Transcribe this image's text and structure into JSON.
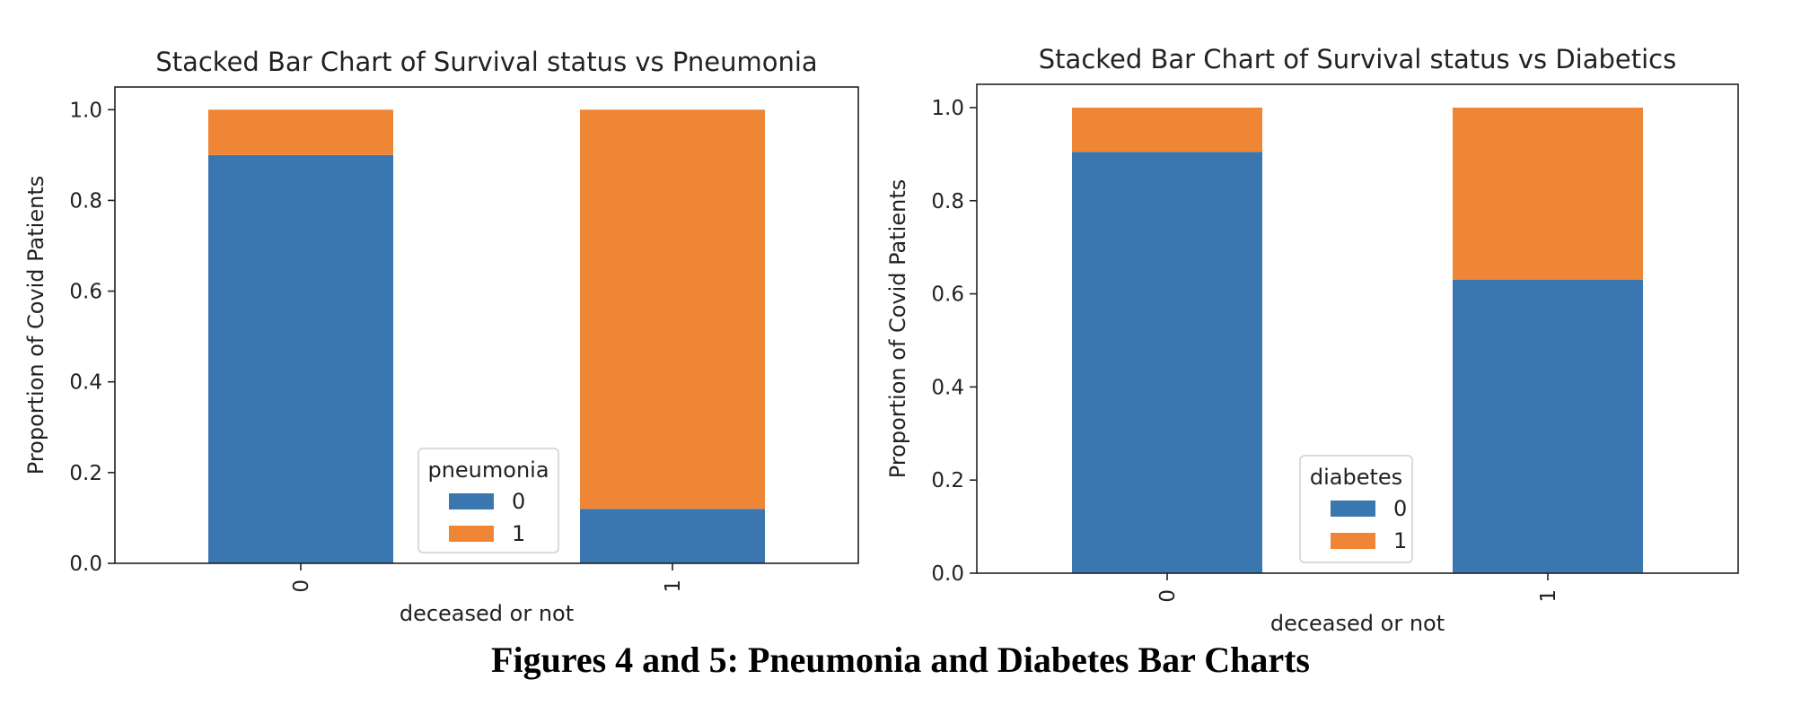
{
  "caption": "Figures 4 and 5: Pneumonia and Diabetes Bar Charts",
  "colors": {
    "series_0": "#3a76b0",
    "series_1": "#ef8636"
  },
  "chart_data": [
    {
      "type": "bar",
      "stacked": true,
      "title": "Stacked Bar Chart of Survival status vs Pneumonia",
      "xlabel": "deceased or not",
      "ylabel": "Proportion of Covid Patients",
      "categories": [
        "0",
        "1"
      ],
      "ylim": [
        0,
        1.05
      ],
      "yticks": [
        "0.0",
        "0.2",
        "0.4",
        "0.6",
        "0.8",
        "1.0"
      ],
      "grid": false,
      "legend": {
        "title": "pneumonia",
        "placement": "lower-center"
      },
      "series": [
        {
          "name": "0",
          "values": [
            0.9,
            0.12
          ]
        },
        {
          "name": "1",
          "values": [
            0.1,
            0.88
          ]
        }
      ]
    },
    {
      "type": "bar",
      "stacked": true,
      "title": "Stacked Bar Chart of Survival status vs Diabetics",
      "xlabel": "deceased or not",
      "ylabel": "Proportion of Covid Patients",
      "categories": [
        "0",
        "1"
      ],
      "ylim": [
        0,
        1.05
      ],
      "yticks": [
        "0.0",
        "0.2",
        "0.4",
        "0.6",
        "0.8",
        "1.0"
      ],
      "grid": false,
      "legend": {
        "title": "diabetes",
        "placement": "lower-center"
      },
      "series": [
        {
          "name": "0",
          "values": [
            0.905,
            0.63
          ]
        },
        {
          "name": "1",
          "values": [
            0.095,
            0.37
          ]
        }
      ]
    }
  ]
}
